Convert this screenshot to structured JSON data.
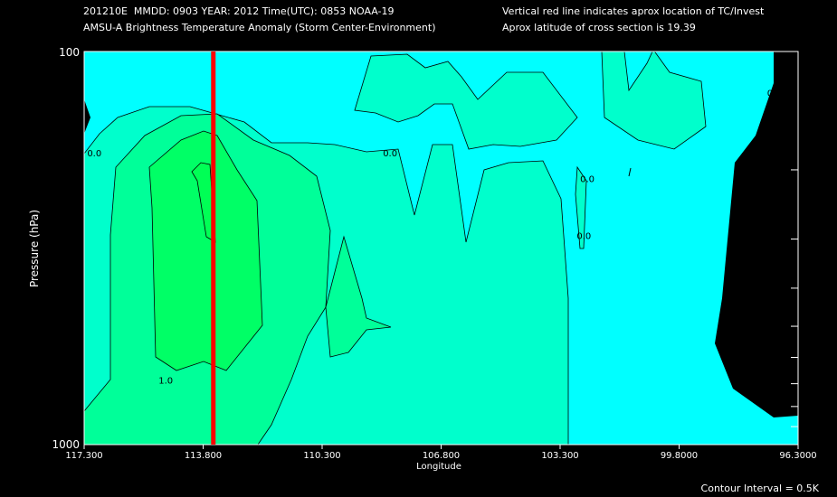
{
  "header": {
    "line1_left": "201210E  MMDD: 0903 YEAR: 2012 Time(UTC): 0853 NOAA-19",
    "line2_left": "AMSU-A Brightness Temperature Anomaly (Storm Center-Environment)",
    "line1_right": "Vertical red line indicates aprox location of TC/Invest",
    "line2_right": "Aprox latitude of cross section is 19.39"
  },
  "footer": {
    "contour_interval": "Contour Interval = 0.5K"
  },
  "colors": {
    "background": "#000000",
    "level_neg": "#00ffff",
    "level_0": "#00ffcc",
    "level_05": "#00ff99",
    "level_1": "#00ff66",
    "tc_line": "#ff0000"
  },
  "chart_data": {
    "type": "contour",
    "title": "AMSU-A Brightness Temperature Anomaly (Storm Center-Environment)",
    "xlabel": "Longitude",
    "ylabel": "Pressure (hPa)",
    "x_ticks": [
      "117.300",
      "113.800",
      "110.300",
      "106.800",
      "103.300",
      "99.8000",
      "96.3000"
    ],
    "x_tick_values": [
      117.3,
      113.8,
      110.3,
      106.8,
      103.3,
      99.8,
      96.3
    ],
    "y_tick_labels": [
      "100",
      "1000"
    ],
    "xlim": [
      117.3,
      96.3
    ],
    "ylim": [
      1000,
      100
    ],
    "y_scale": "log",
    "tc_longitude": 113.5,
    "contour_interval_K": 0.5,
    "contour_labels": [
      {
        "text": "0.0",
        "lon": 117.0,
        "p": 185
      },
      {
        "text": "0.0",
        "lon": 108.3,
        "p": 185
      },
      {
        "text": "0.0",
        "lon": 102.5,
        "p": 215
      },
      {
        "text": "0.0",
        "lon": 102.6,
        "p": 300
      },
      {
        "text": "0.0",
        "lon": 97.0,
        "p": 130
      },
      {
        "text": "1.0",
        "lon": 114.9,
        "p": 700
      }
    ],
    "levels": [
      -0.5,
      0.0,
      0.5,
      1.0
    ]
  }
}
